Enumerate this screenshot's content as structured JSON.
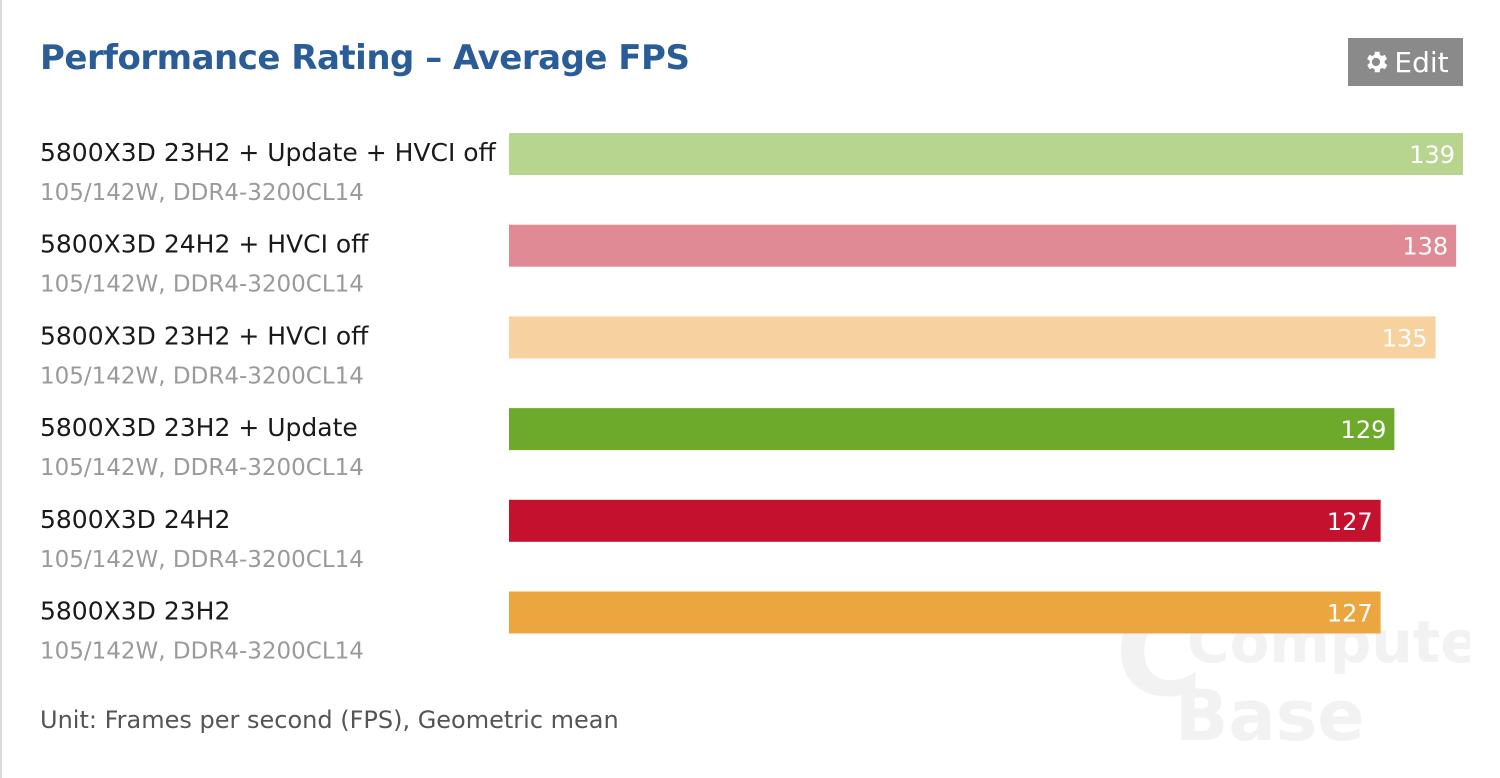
{
  "header": {
    "title": "Performance Rating – Average FPS",
    "edit_label": "Edit"
  },
  "footer": {
    "unit_text": "Unit: Frames per second (FPS), Geometric mean"
  },
  "watermark": {
    "line1": "Computer",
    "line2": "Base"
  },
  "chart_data": {
    "type": "bar",
    "orientation": "horizontal",
    "title": "Performance Rating – Average FPS",
    "unit": "Frames per second (FPS), Geometric mean",
    "xlim": [
      0,
      139
    ],
    "grid": false,
    "categories": [
      "5800X3D 23H2 + Update + HVCI off",
      "5800X3D 24H2 + HVCI off",
      "5800X3D 23H2 + HVCI off",
      "5800X3D 23H2 + Update",
      "5800X3D 24H2",
      "5800X3D 23H2"
    ],
    "subtitles": [
      "105/142W, DDR4-3200CL14",
      "105/142W, DDR4-3200CL14",
      "105/142W, DDR4-3200CL14",
      "105/142W, DDR4-3200CL14",
      "105/142W, DDR4-3200CL14",
      "105/142W, DDR4-3200CL14"
    ],
    "values": [
      139,
      138,
      135,
      129,
      127,
      127
    ],
    "colors": [
      "#b7d58f",
      "#e08a95",
      "#f7d29f",
      "#6daa2c",
      "#c4122e",
      "#eca63f"
    ]
  }
}
